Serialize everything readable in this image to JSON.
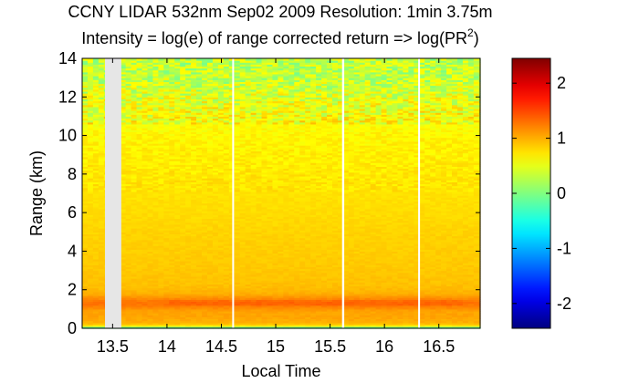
{
  "chart_data": {
    "type": "heatmap",
    "title_line1": "CCNY LIDAR 532nm Sep02 2009 Resolution: 1min 3.75m",
    "title_line2_prefix": "Intensity = log(e) of range corrected return => log(PR",
    "title_line2_sup": "2",
    "title_line2_suffix": ")",
    "xlabel": "Local Time",
    "ylabel": "Range (km)",
    "xlim": [
      13.22,
      16.88
    ],
    "ylim": [
      0,
      14
    ],
    "xticks": [
      13.5,
      14,
      14.5,
      15,
      15.5,
      16,
      16.5
    ],
    "xtick_labels": [
      "13.5",
      "14",
      "14.5",
      "15",
      "15.5",
      "16",
      "16.5"
    ],
    "yticks": [
      0,
      2,
      4,
      6,
      8,
      10,
      12,
      14
    ],
    "ytick_labels": [
      "0",
      "2",
      "4",
      "6",
      "8",
      "10",
      "12",
      "14"
    ],
    "colorbar": {
      "colormap": "jet",
      "clim": [
        -2.45,
        2.45
      ],
      "ticks": [
        -2,
        -1,
        0,
        1,
        2
      ],
      "tick_labels": [
        "-2",
        "-1",
        "0",
        "1",
        "2"
      ]
    },
    "data_gaps": [
      {
        "from": 13.43,
        "to": 13.58
      },
      {
        "from": 14.6,
        "to": 14.61
      },
      {
        "from": 15.61,
        "to": 15.63
      },
      {
        "from": 16.31,
        "to": 16.32
      }
    ],
    "range_profile": {
      "range_km": [
        0,
        0.06,
        0.12,
        0.2,
        0.35,
        0.6,
        0.9,
        1.1,
        1.3,
        1.5,
        1.8,
        2.2,
        3,
        4,
        5,
        6,
        8,
        10,
        11.5,
        12.5,
        13,
        14
      ],
      "intensity": [
        -0.6,
        0,
        0.6,
        0.9,
        1.0,
        1.05,
        1.05,
        1.2,
        1.3,
        1.22,
        1.0,
        0.92,
        0.88,
        0.85,
        0.82,
        0.78,
        0.72,
        0.65,
        0.52,
        0.38,
        0.3,
        0.3
      ]
    },
    "grid": false
  }
}
